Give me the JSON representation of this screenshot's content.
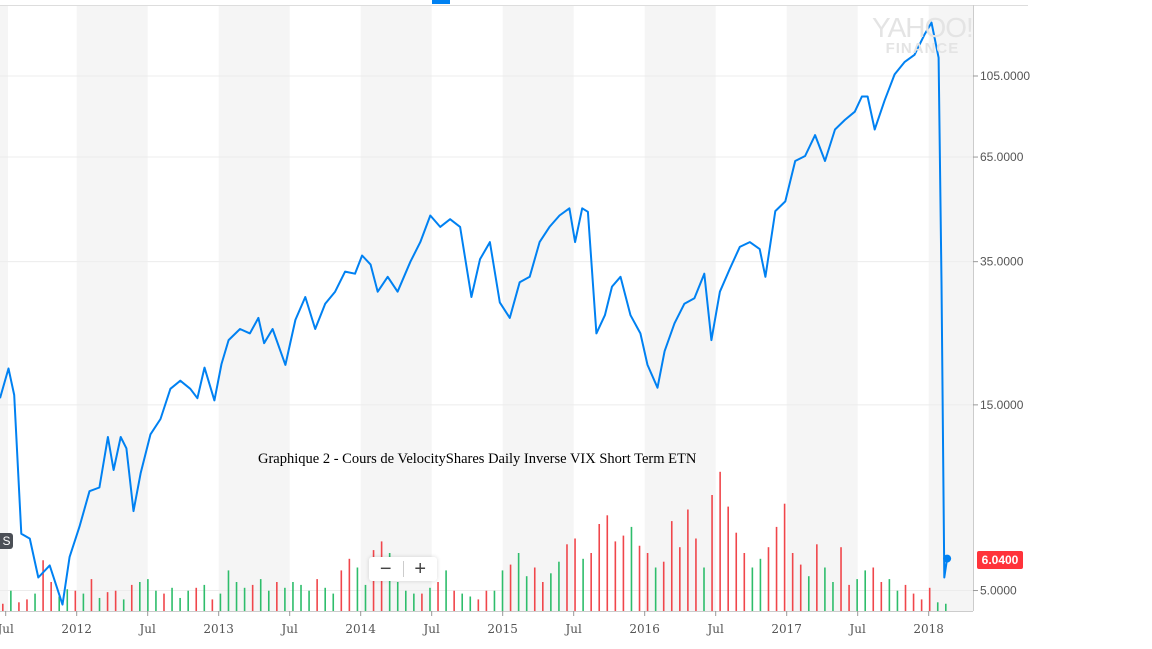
{
  "logo": {
    "line1": "YAHOO!",
    "line2": "FINANCE"
  },
  "caption": "Graphique 2 - Cours de VelocityShares Daily Inverse VIX Short Term ETN",
  "current_price_label": "6.0400",
  "series_badge": "S",
  "zoom_controls": {
    "minus": "−",
    "plus": "+"
  },
  "colors": {
    "line": "#0081f2",
    "up": "#2ebd6b",
    "down": "#f0464b",
    "band": "#f5f5f5",
    "price_badge": "#ff333a"
  },
  "chart_data": {
    "type": "line",
    "title": "Graphique 2 - Cours de VelocityShares Daily Inverse VIX Short Term ETN",
    "yscale": "log",
    "ylim": [
      4.3,
      150
    ],
    "xlim": [
      2011.46,
      2018.31
    ],
    "y_ticks": [
      {
        "v": 105,
        "label": "105.0000"
      },
      {
        "v": 65,
        "label": "65.0000"
      },
      {
        "v": 35,
        "label": "35.0000"
      },
      {
        "v": 15,
        "label": "15.0000"
      },
      {
        "v": 5,
        "label": "5.0000"
      }
    ],
    "x_ticks": [
      {
        "t": 2011.5,
        "label": "Jul"
      },
      {
        "t": 2012,
        "label": "2012"
      },
      {
        "t": 2012.5,
        "label": "Jul"
      },
      {
        "t": 2013,
        "label": "2013"
      },
      {
        "t": 2013.5,
        "label": "Jul"
      },
      {
        "t": 2014,
        "label": "2014"
      },
      {
        "t": 2014.5,
        "label": "Jul"
      },
      {
        "t": 2015,
        "label": "2015"
      },
      {
        "t": 2015.5,
        "label": "Jul"
      },
      {
        "t": 2016,
        "label": "2016"
      },
      {
        "t": 2016.5,
        "label": "Jul"
      },
      {
        "t": 2017,
        "label": "2017"
      },
      {
        "t": 2017.5,
        "label": "Jul"
      },
      {
        "t": 2018,
        "label": "2018"
      }
    ],
    "price": [
      [
        2011.46,
        15.6
      ],
      [
        2011.52,
        18.6
      ],
      [
        2011.56,
        15.9
      ],
      [
        2011.61,
        7.0
      ],
      [
        2011.67,
        6.8
      ],
      [
        2011.73,
        5.4
      ],
      [
        2011.81,
        5.8
      ],
      [
        2011.9,
        4.6
      ],
      [
        2011.95,
        6.1
      ],
      [
        2012.02,
        7.3
      ],
      [
        2012.09,
        9.0
      ],
      [
        2012.16,
        9.2
      ],
      [
        2012.22,
        12.4
      ],
      [
        2012.26,
        10.2
      ],
      [
        2012.31,
        12.4
      ],
      [
        2012.35,
        11.6
      ],
      [
        2012.4,
        8.0
      ],
      [
        2012.45,
        10.0
      ],
      [
        2012.52,
        12.6
      ],
      [
        2012.59,
        13.8
      ],
      [
        2012.66,
        16.5
      ],
      [
        2012.73,
        17.3
      ],
      [
        2012.8,
        16.5
      ],
      [
        2012.85,
        15.6
      ],
      [
        2012.9,
        18.7
      ],
      [
        2012.97,
        15.4
      ],
      [
        2013.02,
        19.1
      ],
      [
        2013.07,
        22.0
      ],
      [
        2013.15,
        23.5
      ],
      [
        2013.22,
        22.9
      ],
      [
        2013.28,
        25.1
      ],
      [
        2013.32,
        21.6
      ],
      [
        2013.38,
        23.5
      ],
      [
        2013.47,
        19.0
      ],
      [
        2013.54,
        24.8
      ],
      [
        2013.61,
        28.4
      ],
      [
        2013.68,
        23.5
      ],
      [
        2013.75,
        27.3
      ],
      [
        2013.82,
        29.3
      ],
      [
        2013.89,
        33.0
      ],
      [
        2013.96,
        32.6
      ],
      [
        2014.01,
        36.3
      ],
      [
        2014.07,
        34.4
      ],
      [
        2014.12,
        29.3
      ],
      [
        2014.19,
        32.0
      ],
      [
        2014.26,
        29.3
      ],
      [
        2014.35,
        35.0
      ],
      [
        2014.42,
        39.3
      ],
      [
        2014.49,
        46.0
      ],
      [
        2014.56,
        43.0
      ],
      [
        2014.63,
        45.0
      ],
      [
        2014.7,
        43.0
      ],
      [
        2014.78,
        28.4
      ],
      [
        2014.84,
        35.5
      ],
      [
        2014.91,
        39.3
      ],
      [
        2014.98,
        27.5
      ],
      [
        2015.05,
        25.1
      ],
      [
        2015.12,
        31.0
      ],
      [
        2015.19,
        32.0
      ],
      [
        2015.26,
        39.3
      ],
      [
        2015.33,
        43.0
      ],
      [
        2015.4,
        46.0
      ],
      [
        2015.47,
        48.0
      ],
      [
        2015.51,
        39.3
      ],
      [
        2015.56,
        48.0
      ],
      [
        2015.6,
        47.0
      ],
      [
        2015.66,
        22.9
      ],
      [
        2015.72,
        25.5
      ],
      [
        2015.77,
        30.2
      ],
      [
        2015.83,
        32.0
      ],
      [
        2015.9,
        25.5
      ],
      [
        2015.97,
        22.9
      ],
      [
        2016.02,
        19.0
      ],
      [
        2016.09,
        16.6
      ],
      [
        2016.14,
        20.6
      ],
      [
        2016.21,
        24.3
      ],
      [
        2016.28,
        27.3
      ],
      [
        2016.35,
        28.2
      ],
      [
        2016.42,
        32.6
      ],
      [
        2016.47,
        22.0
      ],
      [
        2016.53,
        29.3
      ],
      [
        2016.6,
        33.6
      ],
      [
        2016.67,
        38.2
      ],
      [
        2016.74,
        39.3
      ],
      [
        2016.81,
        37.7
      ],
      [
        2016.85,
        32.0
      ],
      [
        2016.92,
        47.2
      ],
      [
        2016.99,
        50.0
      ],
      [
        2017.06,
        63.5
      ],
      [
        2017.13,
        65.4
      ],
      [
        2017.2,
        74.0
      ],
      [
        2017.27,
        63.5
      ],
      [
        2017.34,
        76.5
      ],
      [
        2017.41,
        81.0
      ],
      [
        2017.48,
        85.0
      ],
      [
        2017.53,
        93.0
      ],
      [
        2017.57,
        93.0
      ],
      [
        2017.62,
        76.5
      ],
      [
        2017.69,
        91.0
      ],
      [
        2017.76,
        106.0
      ],
      [
        2017.83,
        114.0
      ],
      [
        2017.9,
        119.0
      ],
      [
        2017.97,
        134.0
      ],
      [
        2018.02,
        144.0
      ],
      [
        2018.07,
        117.0
      ],
      [
        2018.09,
        31.0
      ],
      [
        2018.11,
        5.4
      ],
      [
        2018.13,
        6.04
      ]
    ],
    "last_price": 6.04,
    "volume_relative": [
      -5,
      14,
      -6,
      -8,
      12,
      -35,
      -20,
      10,
      15,
      -14,
      12,
      -22,
      9,
      -13,
      -14,
      8,
      -18,
      20,
      22,
      14,
      -12,
      16,
      9,
      14,
      -16,
      18,
      -8,
      12,
      28,
      20,
      16,
      -18,
      22,
      14,
      -20,
      16,
      20,
      18,
      14,
      -22,
      16,
      12,
      -28,
      -36,
      30,
      18,
      -42,
      -48,
      40,
      20,
      14,
      12,
      -12,
      16,
      -20,
      28,
      -14,
      12,
      10,
      -8,
      -14,
      14,
      28,
      -32,
      40,
      24,
      -30,
      -20,
      26,
      34,
      -46,
      -50,
      36,
      -40,
      -60,
      -66,
      -48,
      -52,
      58,
      -45,
      -40,
      30,
      -34,
      -62,
      -44,
      -70,
      -50,
      30,
      -80,
      -96,
      -72,
      -54,
      -40,
      30,
      36,
      -44,
      -58,
      -74,
      -40,
      -32,
      24,
      -46,
      30,
      20,
      -44,
      -18,
      22,
      28,
      -30,
      -20,
      22,
      14,
      -18,
      -12,
      -8,
      -16,
      6,
      5
    ]
  }
}
